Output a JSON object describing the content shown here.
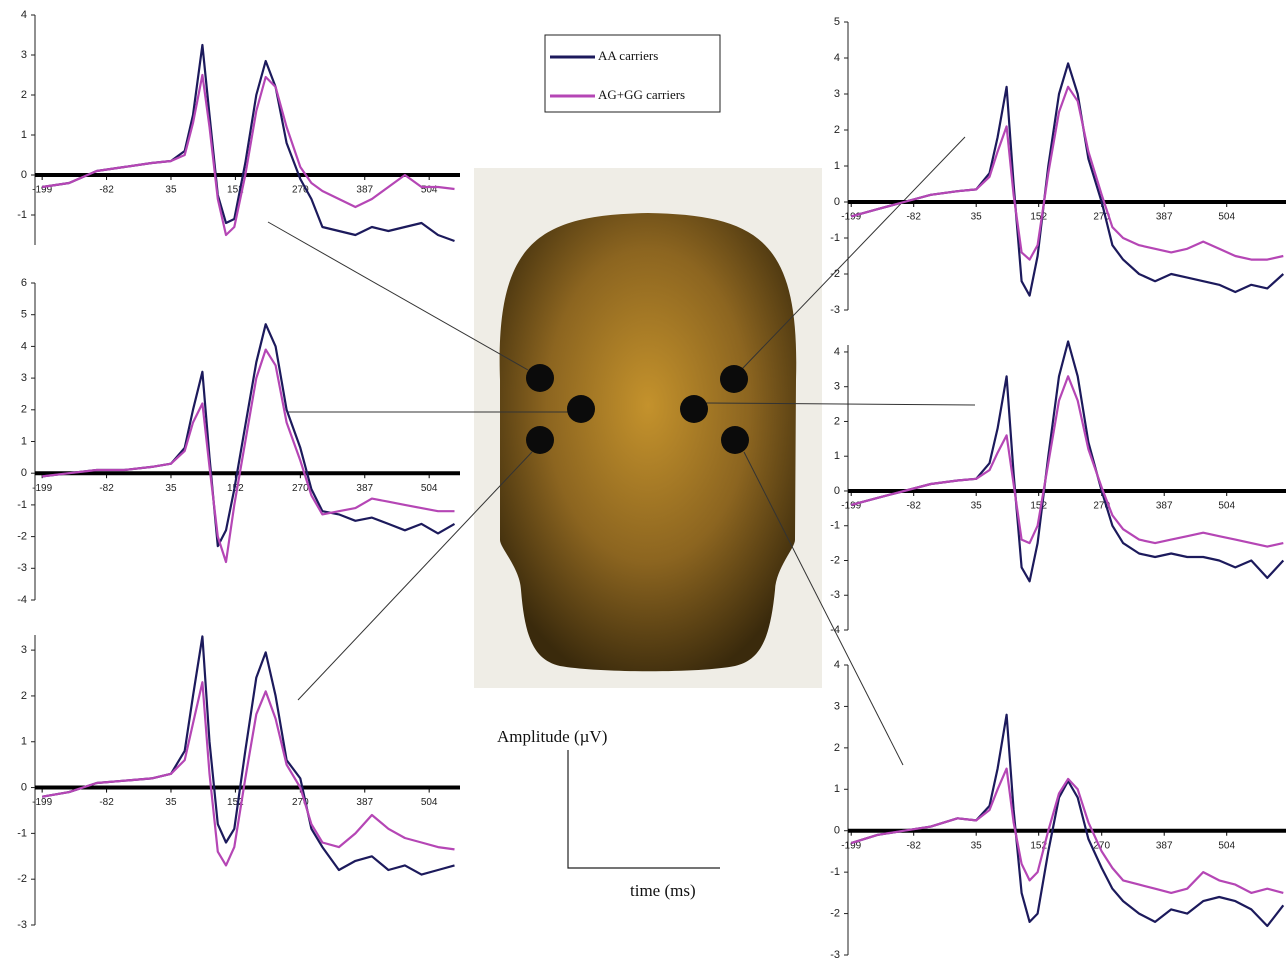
{
  "chart_data": [
    {
      "type": "line",
      "xlim": [
        -212,
        560
      ],
      "ylim": [
        -1.75,
        4
      ],
      "xticks": [
        -199,
        -82,
        35,
        152,
        270,
        387,
        504
      ],
      "yticks": [
        -1,
        0,
        1,
        2,
        3,
        4
      ],
      "x": [
        -199,
        -150,
        -100,
        -50,
        0,
        35,
        60,
        75,
        92,
        105,
        120,
        135,
        150,
        170,
        190,
        207,
        225,
        245,
        270,
        290,
        310,
        340,
        370,
        400,
        430,
        460,
        490,
        520,
        550
      ],
      "series": [
        {
          "name": "AA carriers",
          "color": "#1c1a5c",
          "values": [
            -0.3,
            -0.2,
            0.1,
            0.2,
            0.3,
            0.35,
            0.6,
            1.5,
            3.25,
            1.5,
            -0.5,
            -1.2,
            -1.1,
            0.3,
            2.0,
            2.85,
            2.2,
            0.8,
            -0.1,
            -0.6,
            -1.3,
            -1.4,
            -1.5,
            -1.3,
            -1.4,
            -1.3,
            -1.2,
            -1.5,
            -1.65
          ]
        },
        {
          "name": "AG+GG carriers",
          "color": "#b546b5",
          "values": [
            -0.3,
            -0.2,
            0.1,
            0.2,
            0.3,
            0.35,
            0.5,
            1.3,
            2.5,
            1.2,
            -0.6,
            -1.5,
            -1.3,
            0,
            1.6,
            2.45,
            2.2,
            1.2,
            0.2,
            -0.2,
            -0.4,
            -0.6,
            -0.8,
            -0.6,
            -0.3,
            0,
            -0.3,
            -0.3,
            -0.35
          ]
        }
      ]
    },
    {
      "type": "line",
      "xlim": [
        -212,
        560
      ],
      "ylim": [
        -4,
        6
      ],
      "xticks": [
        -199,
        -82,
        35,
        152,
        270,
        387,
        504
      ],
      "yticks": [
        -4,
        -3,
        -2,
        -1,
        0,
        1,
        2,
        3,
        4,
        5,
        6
      ],
      "x": [
        -199,
        -150,
        -100,
        -50,
        0,
        35,
        60,
        75,
        92,
        105,
        120,
        135,
        150,
        170,
        190,
        207,
        225,
        245,
        270,
        290,
        310,
        340,
        370,
        400,
        430,
        460,
        490,
        520,
        550
      ],
      "series": [
        {
          "color": "#1c1a5c",
          "values": [
            -0.1,
            0,
            0.1,
            0.1,
            0.2,
            0.3,
            0.8,
            2.0,
            3.2,
            0.5,
            -2.3,
            -1.8,
            -0.5,
            1.5,
            3.5,
            4.7,
            4.0,
            2.0,
            0.8,
            -0.5,
            -1.2,
            -1.3,
            -1.5,
            -1.4,
            -1.6,
            -1.8,
            -1.6,
            -1.9,
            -1.6
          ]
        },
        {
          "color": "#b546b5",
          "values": [
            -0.1,
            0,
            0.1,
            0.1,
            0.2,
            0.3,
            0.7,
            1.6,
            2.2,
            0.2,
            -2.0,
            -2.8,
            -1.0,
            1.0,
            3.0,
            3.9,
            3.4,
            1.6,
            0.4,
            -0.7,
            -1.3,
            -1.2,
            -1.1,
            -0.8,
            -0.9,
            -1.0,
            -1.1,
            -1.2,
            -1.2
          ]
        }
      ]
    },
    {
      "type": "line",
      "xlim": [
        -212,
        560
      ],
      "ylim": [
        -3,
        3.33
      ],
      "xticks": [
        -199,
        -82,
        35,
        152,
        270,
        387,
        504
      ],
      "yticks": [
        -3,
        -2,
        -1,
        0,
        1,
        2,
        3
      ],
      "x": [
        -199,
        -150,
        -100,
        -50,
        0,
        35,
        60,
        75,
        92,
        105,
        120,
        135,
        150,
        170,
        190,
        207,
        225,
        245,
        270,
        290,
        310,
        340,
        370,
        400,
        430,
        460,
        490,
        520,
        550
      ],
      "series": [
        {
          "color": "#1c1a5c",
          "values": [
            -0.2,
            -0.1,
            0.1,
            0.15,
            0.2,
            0.3,
            0.8,
            2.0,
            3.3,
            1.0,
            -0.8,
            -1.2,
            -0.9,
            0.8,
            2.4,
            2.95,
            2.0,
            0.6,
            0.2,
            -0.9,
            -1.3,
            -1.8,
            -1.6,
            -1.5,
            -1.8,
            -1.7,
            -1.9,
            -1.8,
            -1.7
          ]
        },
        {
          "color": "#b546b5",
          "values": [
            -0.2,
            -0.1,
            0.1,
            0.15,
            0.2,
            0.3,
            0.6,
            1.4,
            2.3,
            0.3,
            -1.4,
            -1.7,
            -1.3,
            0.2,
            1.6,
            2.1,
            1.5,
            0.5,
            0,
            -0.8,
            -1.2,
            -1.3,
            -1.0,
            -0.6,
            -0.9,
            -1.1,
            -1.2,
            -1.3,
            -1.35
          ]
        }
      ]
    },
    {
      "type": "line",
      "xlim": [
        -205,
        615
      ],
      "ylim": [
        -3,
        5
      ],
      "xticks": [
        -199,
        -82,
        35,
        152,
        270,
        387,
        504
      ],
      "yticks": [
        -3,
        -2,
        -1,
        0,
        1,
        2,
        3,
        4,
        5
      ],
      "x": [
        -199,
        -150,
        -100,
        -50,
        0,
        35,
        60,
        75,
        92,
        105,
        120,
        135,
        150,
        170,
        190,
        207,
        225,
        245,
        270,
        290,
        310,
        340,
        370,
        400,
        430,
        460,
        490,
        520,
        550,
        580,
        610
      ],
      "series": [
        {
          "color": "#1c1a5c",
          "values": [
            -0.4,
            -0.2,
            0,
            0.2,
            0.3,
            0.35,
            0.8,
            1.8,
            3.2,
            0.5,
            -2.2,
            -2.6,
            -1.5,
            1.0,
            3.0,
            3.85,
            3.0,
            1.2,
            0,
            -1.2,
            -1.6,
            -2.0,
            -2.2,
            -2.0,
            -2.1,
            -2.2,
            -2.3,
            -2.5,
            -2.3,
            -2.4,
            -2.0
          ]
        },
        {
          "color": "#b546b5",
          "values": [
            -0.4,
            -0.2,
            0,
            0.2,
            0.3,
            0.35,
            0.7,
            1.4,
            2.1,
            0.2,
            -1.4,
            -1.6,
            -1.2,
            0.8,
            2.5,
            3.2,
            2.8,
            1.4,
            0.2,
            -0.7,
            -1.0,
            -1.2,
            -1.3,
            -1.4,
            -1.3,
            -1.1,
            -1.3,
            -1.5,
            -1.6,
            -1.6,
            -1.5
          ]
        }
      ]
    },
    {
      "type": "line",
      "xlim": [
        -205,
        615
      ],
      "ylim": [
        -4,
        4.2
      ],
      "xticks": [
        -199,
        -82,
        35,
        152,
        270,
        387,
        504
      ],
      "yticks": [
        -4,
        -3,
        -2,
        -1,
        0,
        1,
        2,
        3,
        4
      ],
      "x": [
        -199,
        -150,
        -100,
        -50,
        0,
        35,
        60,
        75,
        92,
        105,
        120,
        135,
        150,
        170,
        190,
        207,
        225,
        245,
        270,
        290,
        310,
        340,
        370,
        400,
        430,
        460,
        490,
        520,
        550,
        580,
        610
      ],
      "series": [
        {
          "color": "#1c1a5c",
          "values": [
            -0.4,
            -0.2,
            0,
            0.2,
            0.3,
            0.35,
            0.8,
            1.8,
            3.3,
            0.5,
            -2.2,
            -2.6,
            -1.5,
            1.0,
            3.3,
            4.3,
            3.3,
            1.4,
            0,
            -1.0,
            -1.5,
            -1.8,
            -1.9,
            -1.8,
            -1.9,
            -1.9,
            -2.0,
            -2.2,
            -2.0,
            -2.5,
            -2.0
          ]
        },
        {
          "color": "#b546b5",
          "values": [
            -0.4,
            -0.2,
            0,
            0.2,
            0.3,
            0.35,
            0.6,
            1.1,
            1.6,
            0.2,
            -1.4,
            -1.5,
            -1.0,
            0.8,
            2.6,
            3.3,
            2.6,
            1.2,
            0.1,
            -0.7,
            -1.1,
            -1.4,
            -1.5,
            -1.4,
            -1.3,
            -1.2,
            -1.3,
            -1.4,
            -1.5,
            -1.6,
            -1.5
          ]
        }
      ]
    },
    {
      "type": "line",
      "xlim": [
        -205,
        615
      ],
      "ylim": [
        -3,
        4
      ],
      "xticks": [
        -199,
        -82,
        35,
        152,
        270,
        387,
        504
      ],
      "yticks": [
        -3,
        -2,
        -1,
        0,
        1,
        2,
        3,
        4
      ],
      "x": [
        -199,
        -150,
        -100,
        -50,
        0,
        35,
        60,
        75,
        92,
        105,
        120,
        135,
        150,
        170,
        190,
        207,
        225,
        245,
        270,
        290,
        310,
        340,
        370,
        400,
        430,
        460,
        490,
        520,
        550,
        580,
        610
      ],
      "series": [
        {
          "color": "#1c1a5c",
          "values": [
            -0.3,
            -0.1,
            0,
            0.1,
            0.3,
            0.25,
            0.6,
            1.5,
            2.8,
            0.5,
            -1.5,
            -2.2,
            -2.0,
            -0.5,
            0.8,
            1.2,
            0.8,
            -0.2,
            -0.9,
            -1.4,
            -1.7,
            -2.0,
            -2.2,
            -1.9,
            -2.0,
            -1.7,
            -1.6,
            -1.7,
            -1.9,
            -2.3,
            -1.8
          ]
        },
        {
          "color": "#b546b5",
          "values": [
            -0.3,
            -0.1,
            0,
            0.1,
            0.3,
            0.25,
            0.5,
            1.0,
            1.5,
            0.2,
            -0.8,
            -1.2,
            -1.0,
            0,
            0.9,
            1.25,
            1.0,
            0.2,
            -0.5,
            -0.9,
            -1.2,
            -1.3,
            -1.4,
            -1.5,
            -1.4,
            -1.0,
            -1.2,
            -1.3,
            -1.5,
            -1.4,
            -1.5
          ]
        }
      ]
    }
  ],
  "scale_bar": {
    "amplitude_label": "Amplitude (µV)",
    "time_label": "time (ms)"
  }
}
